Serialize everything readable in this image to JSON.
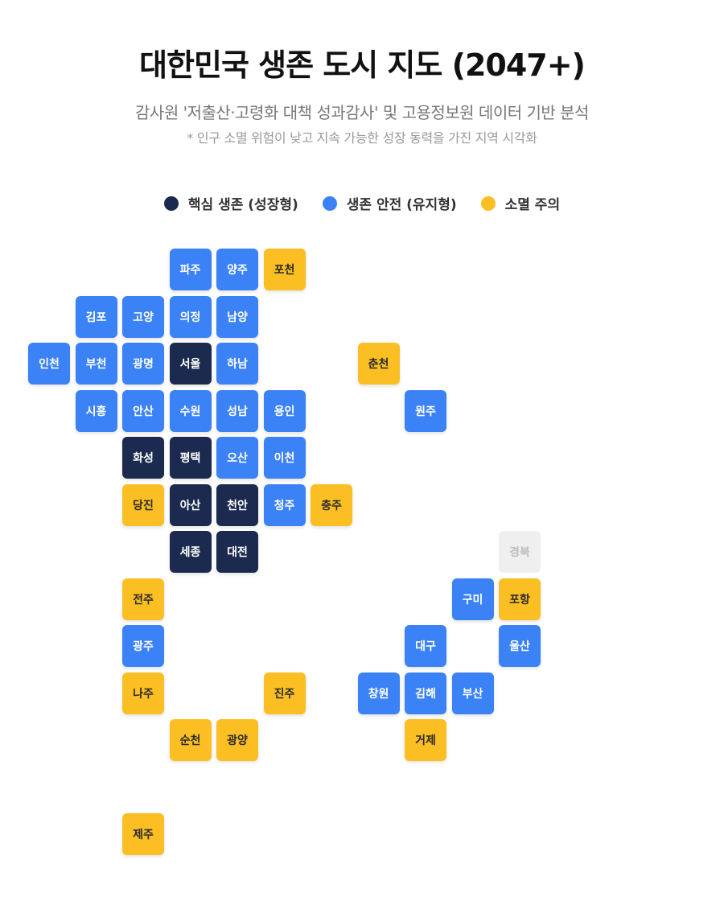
{
  "title": "대한민국 생존 도시 지도 (2047+)",
  "subtitle": "감사원 '저출산·고령화 대책 성과감사' 및 고용정보원 데이터 기반 분석",
  "note": "* 인구 소멸 위험이 낮고 지속 가능한 성장 동력을 가진 지역 시각화",
  "legend": [
    {
      "label": "핵심 생존 (성장형)",
      "category": "core",
      "color": "#1b2a4e"
    },
    {
      "label": "생존 안전 (유지형)",
      "category": "safe",
      "color": "#3b82f6"
    },
    {
      "label": "소멸 주의",
      "category": "risk",
      "color": "#fbbf24"
    }
  ],
  "category_styles": {
    "core": {
      "bg": "#1b2a4e",
      "text": "#ffffff"
    },
    "safe": {
      "bg": "#3b82f6",
      "text": "#ffffff"
    },
    "risk": {
      "bg": "#fbbf24",
      "text": "#2a2a2a"
    },
    "none": {
      "bg": "#efefef",
      "text": "#bdbdbd"
    }
  },
  "tiles": [
    {
      "name": "파주",
      "category": "safe"
    },
    {
      "name": "양주",
      "category": "safe"
    },
    {
      "name": "포천",
      "category": "risk"
    },
    {
      "name": "김포",
      "category": "safe"
    },
    {
      "name": "고양",
      "category": "safe"
    },
    {
      "name": "의정",
      "category": "safe"
    },
    {
      "name": "남양",
      "category": "safe"
    },
    {
      "name": "인천",
      "category": "safe"
    },
    {
      "name": "부천",
      "category": "safe"
    },
    {
      "name": "광명",
      "category": "safe"
    },
    {
      "name": "서울",
      "category": "core"
    },
    {
      "name": "하남",
      "category": "safe"
    },
    {
      "name": "춘천",
      "category": "risk"
    },
    {
      "name": "시흥",
      "category": "safe"
    },
    {
      "name": "안산",
      "category": "safe"
    },
    {
      "name": "수원",
      "category": "safe"
    },
    {
      "name": "성남",
      "category": "safe"
    },
    {
      "name": "용인",
      "category": "safe"
    },
    {
      "name": "원주",
      "category": "safe"
    },
    {
      "name": "화성",
      "category": "core"
    },
    {
      "name": "평택",
      "category": "core"
    },
    {
      "name": "오산",
      "category": "safe"
    },
    {
      "name": "이천",
      "category": "safe"
    },
    {
      "name": "당진",
      "category": "risk"
    },
    {
      "name": "아산",
      "category": "core"
    },
    {
      "name": "천안",
      "category": "core"
    },
    {
      "name": "청주",
      "category": "safe"
    },
    {
      "name": "충주",
      "category": "risk"
    },
    {
      "name": "세종",
      "category": "core"
    },
    {
      "name": "대전",
      "category": "core"
    },
    {
      "name": "경북",
      "category": "none"
    },
    {
      "name": "전주",
      "category": "risk"
    },
    {
      "name": "구미",
      "category": "safe"
    },
    {
      "name": "포항",
      "category": "risk"
    },
    {
      "name": "광주",
      "category": "safe"
    },
    {
      "name": "대구",
      "category": "safe"
    },
    {
      "name": "울산",
      "category": "safe"
    },
    {
      "name": "나주",
      "category": "risk"
    },
    {
      "name": "진주",
      "category": "risk"
    },
    {
      "name": "창원",
      "category": "safe"
    },
    {
      "name": "김해",
      "category": "safe"
    },
    {
      "name": "부산",
      "category": "safe"
    },
    {
      "name": "순천",
      "category": "risk"
    },
    {
      "name": "광양",
      "category": "risk"
    },
    {
      "name": "거제",
      "category": "risk"
    },
    {
      "name": "제주",
      "category": "risk"
    }
  ]
}
